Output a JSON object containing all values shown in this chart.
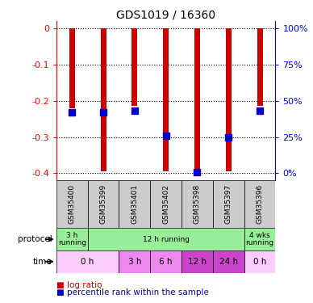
{
  "title": "GDS1019 / 16360",
  "samples": [
    "GSM35400",
    "GSM35399",
    "GSM35401",
    "GSM35402",
    "GSM35398",
    "GSM35397",
    "GSM35396"
  ],
  "log_ratios": [
    -0.22,
    -0.395,
    -0.215,
    -0.395,
    -0.395,
    -0.395,
    -0.215
  ],
  "percentile_ranks": [
    0.43,
    0.43,
    0.44,
    0.28,
    0.05,
    0.27,
    0.44
  ],
  "ylim": [
    -0.42,
    0.02
  ],
  "yticks_left": [
    0,
    -0.1,
    -0.2,
    -0.3,
    -0.4
  ],
  "yticks_right": [
    100,
    75,
    50,
    25,
    0
  ],
  "bar_color": "#cc0000",
  "dot_color": "#0000cc",
  "sample_label_bg": "#cccccc",
  "proto_data": [
    {
      "label": "3 h\nrunning",
      "start": 0,
      "end": 1,
      "color": "#99ee99"
    },
    {
      "label": "12 h running",
      "start": 1,
      "end": 6,
      "color": "#99ee99"
    },
    {
      "label": "4 wks\nrunning",
      "start": 6,
      "end": 7,
      "color": "#99ee99"
    }
  ],
  "time_data": [
    {
      "label": "0 h",
      "start": 0,
      "end": 2,
      "color": "#ffccff"
    },
    {
      "label": "3 h",
      "start": 2,
      "end": 3,
      "color": "#ee88ee"
    },
    {
      "label": "6 h",
      "start": 3,
      "end": 4,
      "color": "#ee88ee"
    },
    {
      "label": "12 h",
      "start": 4,
      "end": 5,
      "color": "#cc44cc"
    },
    {
      "label": "24 h",
      "start": 5,
      "end": 6,
      "color": "#cc44cc"
    },
    {
      "label": "0 h",
      "start": 6,
      "end": 7,
      "color": "#ffccff"
    }
  ]
}
